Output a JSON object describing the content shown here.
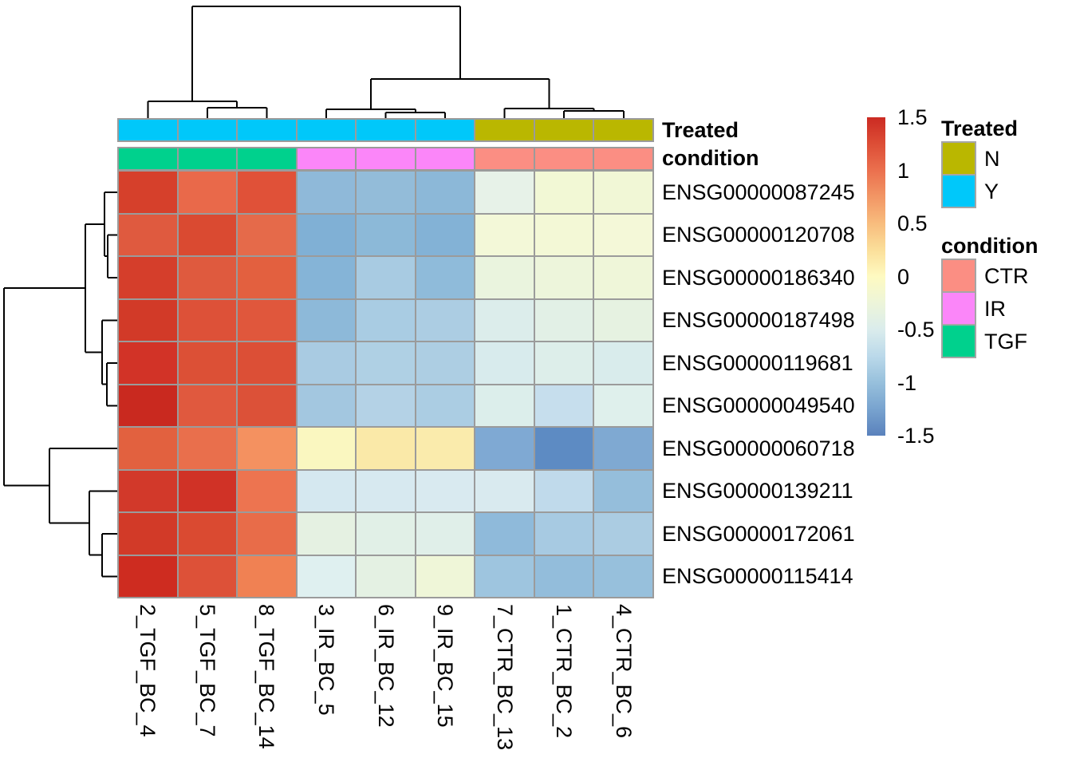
{
  "chart_data": {
    "type": "heatmap",
    "title": "",
    "rows": [
      "ENSG00000087245",
      "ENSG00000120708",
      "ENSG00000186340",
      "ENSG00000187498",
      "ENSG00000119681",
      "ENSG00000049540",
      "ENSG00000060718",
      "ENSG00000139211",
      "ENSG00000172061",
      "ENSG00000115414"
    ],
    "columns": [
      "2_TGF_BC_4",
      "5_TGF_BC_7",
      "8_TGF_BC_14",
      "3_IR_BC_5",
      "6_IR_BC_12",
      "9_IR_BC_15",
      "7_CTR_BC_13",
      "1_CTR_BC_2",
      "4_CTR_BC_6"
    ],
    "values": [
      [
        1.3,
        0.95,
        1.15,
        -0.9,
        -0.88,
        -0.92,
        -0.2,
        -0.12,
        -0.13
      ],
      [
        1.1,
        1.2,
        1.0,
        -1.02,
        -0.95,
        -1.0,
        -0.13,
        -0.13,
        -0.12
      ],
      [
        1.25,
        1.1,
        1.08,
        -0.98,
        -0.75,
        -0.9,
        -0.22,
        -0.18,
        -0.16
      ],
      [
        1.32,
        1.18,
        1.12,
        -0.9,
        -0.74,
        -0.72,
        -0.35,
        -0.3,
        -0.27
      ],
      [
        1.35,
        1.18,
        1.19,
        -0.73,
        -0.68,
        -0.7,
        -0.4,
        -0.35,
        -0.38
      ],
      [
        1.45,
        1.15,
        1.17,
        -0.8,
        -0.64,
        -0.72,
        -0.37,
        -0.55,
        -0.35
      ],
      [
        1.05,
        0.95,
        0.75,
        0.18,
        0.28,
        0.26,
        -1.03,
        -1.32,
        -1.04
      ],
      [
        1.33,
        1.4,
        0.9,
        -0.55,
        -0.54,
        -0.53,
        -0.53,
        -0.68,
        -0.97
      ],
      [
        1.32,
        1.22,
        1.0,
        -0.3,
        -0.33,
        -0.34,
        -0.93,
        -0.8,
        -0.78
      ],
      [
        1.42,
        1.18,
        0.82,
        -0.42,
        -0.3,
        -0.17,
        -0.88,
        -0.95,
        -0.92
      ]
    ],
    "cell_colors": [
      [
        "#D6402B",
        "#E9694A",
        "#E05138",
        "#8FB9D9",
        "#93BCD9",
        "#8CB8D8",
        "#E7F2E8",
        "#F2F8D5",
        "#F1F7D6"
      ],
      [
        "#DF5A3F",
        "#DA4A31",
        "#E56A4A",
        "#80B0D5",
        "#8CB9D8",
        "#83B2D6",
        "#F3F8D8",
        "#F3F8D6",
        "#F4F8D8"
      ],
      [
        "#D53E2B",
        "#DF5A3E",
        "#E3603F",
        "#85B4D7",
        "#A8CBE2",
        "#8FBBDA",
        "#EAF4DE",
        "#EDF5DB",
        "#EFF6D9"
      ],
      [
        "#D23A28",
        "#DD5138",
        "#E0573C",
        "#8DB9D9",
        "#A9CCE3",
        "#ACCDE3",
        "#DCEDEB",
        "#E2F0E6",
        "#E6F2E1"
      ],
      [
        "#D23327",
        "#DC5036",
        "#DC4F36",
        "#A9CBE2",
        "#AFD0E4",
        "#ADCEE3",
        "#D8EBED",
        "#DDEEEA",
        "#D9ECEC"
      ],
      [
        "#C9291F",
        "#E0593E",
        "#DC5138",
        "#A3C7E0",
        "#B4D2E6",
        "#ABCDE3",
        "#DCEEEB",
        "#C6DEED",
        "#DFF0EC"
      ],
      [
        "#E2613F",
        "#E96F4C",
        "#F49160",
        "#FAF7C0",
        "#FAE9A8",
        "#FAEBAC",
        "#7FA9D3",
        "#5D8BC3",
        "#7FA9D2"
      ],
      [
        "#D2392A",
        "#D03226",
        "#ED7450",
        "#D5E8F0",
        "#D7E9F0",
        "#D9EAF0",
        "#D9EAEF",
        "#C0DAEB",
        "#95BEDB"
      ],
      [
        "#D23A28",
        "#DA4A31",
        "#E86C49",
        "#E5F1E2",
        "#E1F0E7",
        "#E0EFE9",
        "#8FBADA",
        "#A7CAE2",
        "#ABCCE2"
      ],
      [
        "#CE2C20",
        "#DD5138",
        "#F08153",
        "#DFF0F0",
        "#E4F1E3",
        "#EFF6D8",
        "#9EC5DF",
        "#93BDDB",
        "#97C0DC"
      ]
    ],
    "column_annotations": [
      {
        "name": "Treated",
        "values": [
          "Y",
          "Y",
          "Y",
          "Y",
          "Y",
          "Y",
          "N",
          "N",
          "N"
        ],
        "legend": [
          {
            "label": "N",
            "color": "#BAB700"
          },
          {
            "label": "Y",
            "color": "#00C8FA"
          }
        ]
      },
      {
        "name": "condition",
        "values": [
          "TGF",
          "TGF",
          "TGF",
          "IR",
          "IR",
          "IR",
          "CTR",
          "CTR",
          "CTR"
        ],
        "legend": [
          {
            "label": "CTR",
            "color": "#FB8E83"
          },
          {
            "label": "IR",
            "color": "#FB86F9"
          },
          {
            "label": "TGF",
            "color": "#00D18D"
          }
        ]
      }
    ],
    "colorbar": {
      "min": -1.5,
      "max": 1.5,
      "tick_labels": [
        "1.5",
        "1",
        "0.5",
        "0",
        "-0.5",
        "-1",
        "-1.5"
      ],
      "gradient_stops": [
        {
          "pos": 0.0,
          "color": "#CB2A22"
        },
        {
          "pos": 0.08,
          "color": "#DC4C35"
        },
        {
          "pos": 0.167,
          "color": "#EB704E"
        },
        {
          "pos": 0.25,
          "color": "#F29665"
        },
        {
          "pos": 0.333,
          "color": "#F8BC7D"
        },
        {
          "pos": 0.417,
          "color": "#FBDF9A"
        },
        {
          "pos": 0.5,
          "color": "#FEFAC1"
        },
        {
          "pos": 0.583,
          "color": "#EDF5D9"
        },
        {
          "pos": 0.667,
          "color": "#DAECEC"
        },
        {
          "pos": 0.75,
          "color": "#BBD9EA"
        },
        {
          "pos": 0.833,
          "color": "#97C0DC"
        },
        {
          "pos": 0.917,
          "color": "#78A3CF"
        },
        {
          "pos": 1.0,
          "color": "#5A82BC"
        }
      ]
    },
    "col_dendrogram_segments": [
      [
        185.3,
        127,
        185.3,
        148
      ],
      [
        259.9,
        135,
        259.9,
        148
      ],
      [
        334.4,
        135,
        334.4,
        148
      ],
      [
        259.9,
        135,
        334.4,
        135
      ],
      [
        297.2,
        127,
        297.2,
        135
      ],
      [
        185.3,
        127,
        297.2,
        127
      ],
      [
        409,
        137,
        409,
        148
      ],
      [
        483.6,
        141,
        483.6,
        148
      ],
      [
        558.1,
        141,
        558.1,
        148
      ],
      [
        483.6,
        141,
        558.1,
        141
      ],
      [
        520.9,
        137,
        520.9,
        141
      ],
      [
        409,
        137,
        520.9,
        137
      ],
      [
        632.7,
        136,
        632.7,
        148
      ],
      [
        707.2,
        139,
        707.2,
        148
      ],
      [
        781.8,
        139,
        781.8,
        148
      ],
      [
        707.2,
        139,
        781.8,
        139
      ],
      [
        744.5,
        136,
        744.5,
        139
      ],
      [
        632.7,
        136,
        744.5,
        136
      ],
      [
        465,
        99,
        465,
        137
      ],
      [
        688.6,
        99,
        688.6,
        136
      ],
      [
        465,
        99,
        688.6,
        99
      ],
      [
        241.2,
        8,
        241.2,
        127
      ],
      [
        576.8,
        8,
        576.8,
        99
      ],
      [
        241.2,
        8,
        576.8,
        8
      ]
    ],
    "row_dendrogram_segments": [
      [
        147,
        240.8,
        131,
        240.8
      ],
      [
        147,
        294.3,
        135,
        294.3
      ],
      [
        147,
        347.8,
        135,
        347.8
      ],
      [
        135,
        294.3,
        135,
        347.8
      ],
      [
        131,
        321,
        135,
        321
      ],
      [
        131,
        240.8,
        131,
        321
      ],
      [
        131,
        280.9,
        107,
        280.9
      ],
      [
        147,
        401.3,
        128,
        401.3
      ],
      [
        147,
        454.8,
        134,
        454.8
      ],
      [
        147,
        508.3,
        134,
        508.3
      ],
      [
        134,
        454.8,
        134,
        508.3
      ],
      [
        128,
        481.5,
        134,
        481.5
      ],
      [
        128,
        401.3,
        128,
        481.5
      ],
      [
        107,
        441.4,
        128,
        441.4
      ],
      [
        107,
        280.9,
        107,
        441.4
      ],
      [
        5,
        361.2,
        107,
        361.2
      ],
      [
        147,
        561.8,
        62,
        561.8
      ],
      [
        147,
        615.3,
        112,
        615.3
      ],
      [
        147,
        668.8,
        128,
        668.8
      ],
      [
        147,
        722.3,
        128,
        722.3
      ],
      [
        128,
        668.8,
        128,
        722.3
      ],
      [
        112,
        695.5,
        128,
        695.5
      ],
      [
        112,
        615.3,
        112,
        695.5
      ],
      [
        62,
        655.4,
        112,
        655.4
      ],
      [
        62,
        561.8,
        62,
        655.4
      ],
      [
        5,
        608.6,
        62,
        608.6
      ],
      [
        5,
        361.2,
        5,
        608.6
      ]
    ],
    "style": {
      "grid_color": "#9B9B9B",
      "dendrogram_color": "#000000",
      "text_color": "#000000",
      "legend_box_border": "#A6A6A6",
      "background": "#FFFFFF"
    }
  }
}
